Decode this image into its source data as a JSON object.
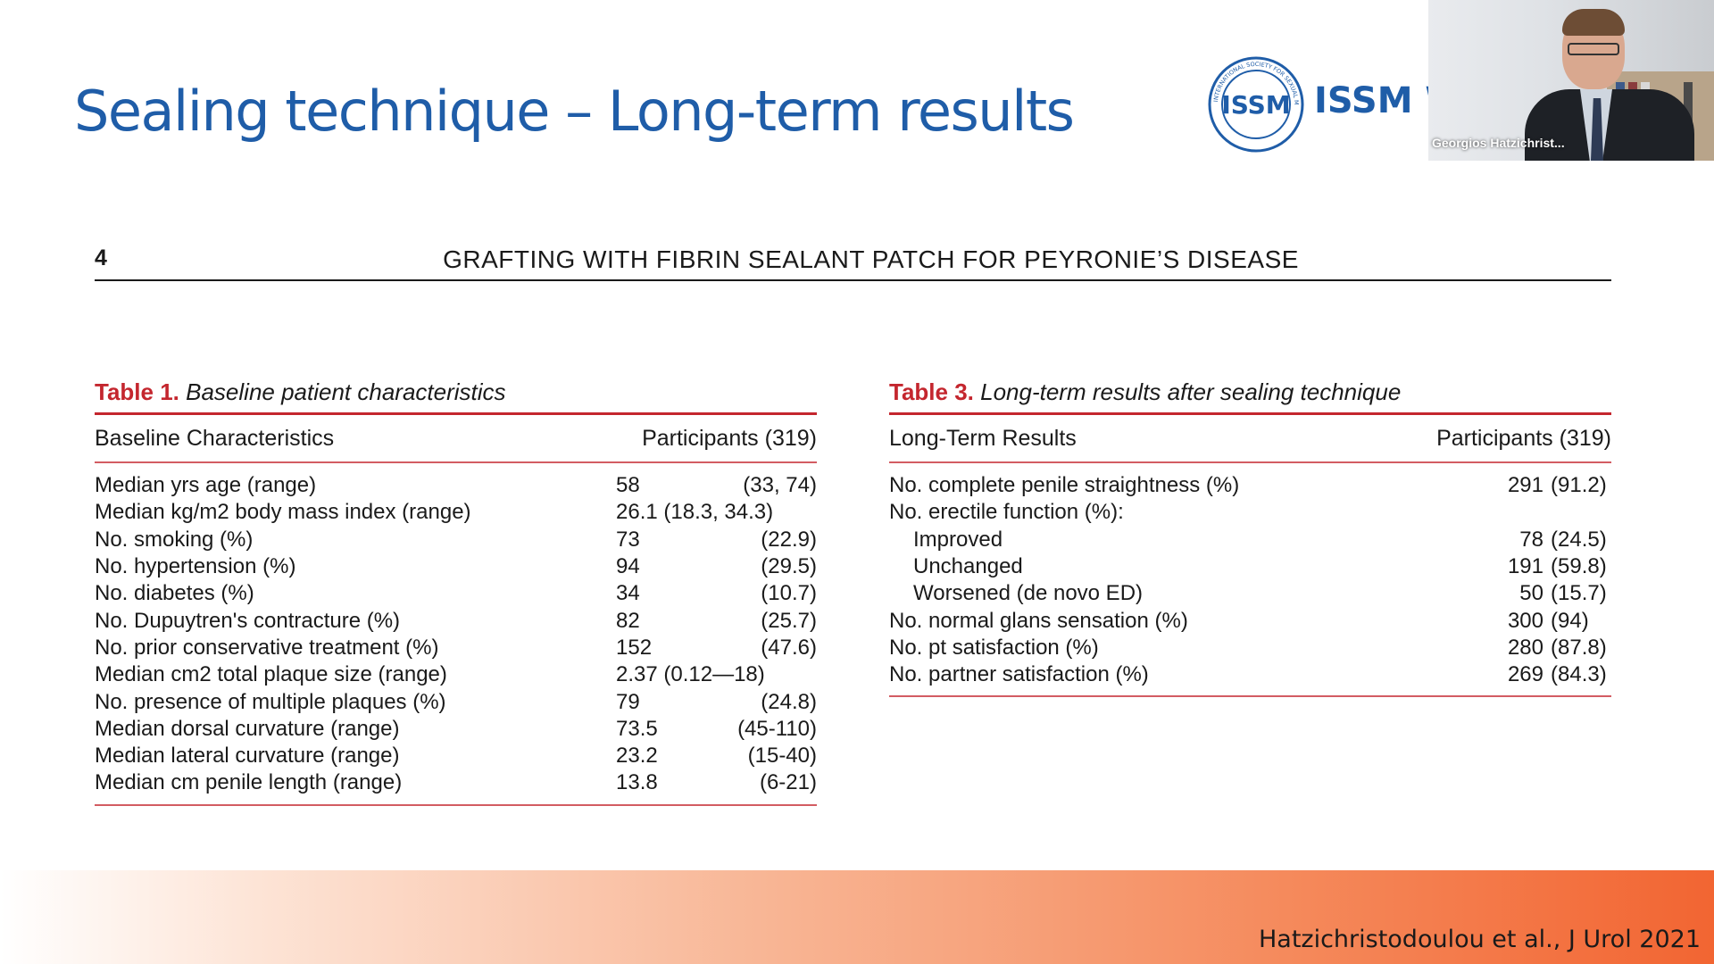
{
  "slide": {
    "title": "Sealing technique – Long-term results",
    "citation": "Hatzichristodoulou et al., J Urol 2021"
  },
  "logo": {
    "text": "ISSM W",
    "emblem_text": "ISSM",
    "ring_text": "INTERNATIONAL SOCIETY FOR SEXUAL MEDICINE",
    "color": "#1f5da8"
  },
  "webcam": {
    "participant_name": "Georgios Hatzichrist..."
  },
  "paper": {
    "page_number": "4",
    "running_header": "GRAFTING WITH FIBRIN SEALANT PATCH FOR PEYRONIE’S DISEASE",
    "accent_color": "#c4262e"
  },
  "table1": {
    "number": "Table 1.",
    "caption": "Baseline patient characteristics",
    "header_left": "Baseline Characteristics",
    "header_right": "Participants (319)",
    "rows": [
      {
        "label": "Median yrs age (range)",
        "v1": "58",
        "v2": "(33, 74)"
      },
      {
        "label": "Median kg/m2 body mass index (range)",
        "v1": "26.1 (18.3, 34.3)",
        "v2": ""
      },
      {
        "label": "No. smoking (%)",
        "v1": "73",
        "v2": "(22.9)"
      },
      {
        "label": "No. hypertension (%)",
        "v1": "94",
        "v2": "(29.5)"
      },
      {
        "label": "No. diabetes (%)",
        "v1": "34",
        "v2": "(10.7)"
      },
      {
        "label": "No. Dupuytren's contracture (%)",
        "v1": "82",
        "v2": "(25.7)"
      },
      {
        "label": "No. prior conservative treatment (%)",
        "v1": "152",
        "v2": "(47.6)"
      },
      {
        "label": "Median cm2 total plaque size (range)",
        "v1": " 2.37 (0.12—18)",
        "v2": ""
      },
      {
        "label": "No. presence of multiple plaques (%)",
        "v1": "79",
        "v2": "(24.8)"
      },
      {
        "label": "Median dorsal curvature (range)",
        "v1": "73.5",
        "v2": "(45-110)"
      },
      {
        "label": "Median lateral curvature (range)",
        "v1": "23.2",
        "v2": "(15-40)"
      },
      {
        "label": "Median cm penile length (range)",
        "v1": "13.8",
        "v2": "(6-21)"
      }
    ]
  },
  "table3": {
    "number": "Table 3.",
    "caption": "Long-term results after sealing technique",
    "header_left": "Long-Term Results",
    "header_right": "Participants (319)",
    "rows": [
      {
        "label": "No. complete penile straightness (%)",
        "v1": "291",
        "v2": "(91.2)",
        "indent": false
      },
      {
        "label": "No. erectile function (%):",
        "v1": "",
        "v2": "",
        "indent": false
      },
      {
        "label": "Improved",
        "v1": "78",
        "v2": "(24.5)",
        "indent": true
      },
      {
        "label": "Unchanged",
        "v1": "191",
        "v2": "(59.8)",
        "indent": true
      },
      {
        "label": "Worsened (de novo ED)",
        "v1": "50",
        "v2": "(15.7)",
        "indent": true
      },
      {
        "label": "No. normal glans sensation (%)",
        "v1": "300",
        "v2": "(94)",
        "indent": false
      },
      {
        "label": "No. pt satisfaction (%)",
        "v1": "280",
        "v2": "(87.8)",
        "indent": false
      },
      {
        "label": "No. partner satisfaction (%)",
        "v1": "269",
        "v2": "(84.3)",
        "indent": false
      }
    ]
  }
}
